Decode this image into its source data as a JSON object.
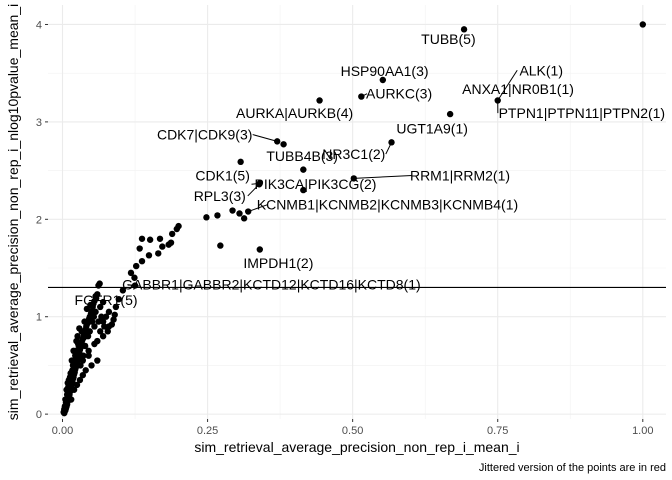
{
  "chart_data": {
    "type": "scatter",
    "xlabel": "sim_retrieval_average_precision_non_rep_i_mean_i",
    "ylabel": "sim_retrieval_average_precision_non_rep_i_nlog10pvalue_mean_i",
    "caption": "Jittered version of the points are in red",
    "xlim": [
      -0.025,
      1.04
    ],
    "ylim": [
      -0.05,
      4.2
    ],
    "x_ticks": [
      0.0,
      0.25,
      0.5,
      0.75,
      1.0
    ],
    "x_tick_labels": [
      "0.00",
      "0.25",
      "0.50",
      "0.75",
      "1.00"
    ],
    "y_ticks": [
      0,
      1,
      2,
      3,
      4
    ],
    "y_tick_labels": [
      "0",
      "1",
      "2",
      "3",
      "4"
    ],
    "grid": true,
    "hline": 1.301,
    "point_color": "#000000",
    "labeled_points": [
      {
        "label": "TUBB(5)",
        "x": 0.692,
        "y": 3.95,
        "lx": 0.665,
        "ly": 3.85
      },
      {
        "label": "ALK(1)",
        "x": 0.75,
        "y": 3.22,
        "lx": 0.825,
        "ly": 3.53
      },
      {
        "label": "HSP90AA1(3)",
        "x": 0.552,
        "y": 3.43,
        "lx": 0.555,
        "ly": 3.52
      },
      {
        "label": "ANXA1|NR0B1(1)",
        "x": 0.75,
        "y": 3.22,
        "lx": 0.785,
        "ly": 3.34
      },
      {
        "label": "AURKC(3)",
        "x": 0.515,
        "y": 3.26,
        "lx": 0.58,
        "ly": 3.29
      },
      {
        "label": "AURKA|AURKB(4)",
        "x": 0.443,
        "y": 3.22,
        "lx": 0.4,
        "ly": 3.09
      },
      {
        "label": "PTPN1|PTPN11|PTPN2(1)",
        "x": 0.75,
        "y": 3.22,
        "lx": 0.895,
        "ly": 3.09
      },
      {
        "label": "UGT1A9(1)",
        "x": 0.668,
        "y": 3.08,
        "lx": 0.637,
        "ly": 2.93
      },
      {
        "label": "CDK7|CDK9(3)",
        "x": 0.37,
        "y": 2.8,
        "lx": 0.245,
        "ly": 2.87
      },
      {
        "label": "NR3C1(2)",
        "x": 0.567,
        "y": 2.79,
        "lx": 0.502,
        "ly": 2.67
      },
      {
        "label": "TUBB4B(3)",
        "x": 0.381,
        "y": 2.77,
        "lx": 0.413,
        "ly": 2.65
      },
      {
        "label": "CDK1(5)",
        "x": 0.307,
        "y": 2.59,
        "lx": 0.276,
        "ly": 2.45
      },
      {
        "label": "RRM1|RRM2(1)",
        "x": 0.502,
        "y": 2.42,
        "lx": 0.685,
        "ly": 2.45
      },
      {
        "label": "PIK3CA|PIK3CG(2)",
        "x": 0.34,
        "y": 2.37,
        "lx": 0.436,
        "ly": 2.36
      },
      {
        "label": "RPL3(3)",
        "x": 0.339,
        "y": 2.36,
        "lx": 0.271,
        "ly": 2.24
      },
      {
        "label": "KCNMB1|KCNMB2|KCNMB3|KCNMB4(1)",
        "x": 0.32,
        "y": 2.08,
        "lx": 0.56,
        "ly": 2.15
      },
      {
        "label": "IMPDH1(2)",
        "x": 0.34,
        "y": 1.69,
        "lx": 0.372,
        "ly": 1.55
      },
      {
        "label": "GABBR1|GABBR2|KCTD12|KCTD16|KCTD8(1)",
        "x": 0.125,
        "y": 1.32,
        "lx": 0.36,
        "ly": 1.33
      },
      {
        "label": "FGFR1(5)",
        "x": 0.06,
        "y": 1.23,
        "lx": 0.075,
        "ly": 1.17
      }
    ],
    "points": [
      [
        1.0,
        4.0
      ],
      [
        0.692,
        3.95
      ],
      [
        0.552,
        3.43
      ],
      [
        0.515,
        3.26
      ],
      [
        0.443,
        3.22
      ],
      [
        0.75,
        3.22
      ],
      [
        0.668,
        3.08
      ],
      [
        0.567,
        2.79
      ],
      [
        0.37,
        2.8
      ],
      [
        0.381,
        2.77
      ],
      [
        0.307,
        2.59
      ],
      [
        0.415,
        2.51
      ],
      [
        0.502,
        2.42
      ],
      [
        0.34,
        2.37
      ],
      [
        0.339,
        2.36
      ],
      [
        0.415,
        2.3
      ],
      [
        0.248,
        2.02
      ],
      [
        0.267,
        2.04
      ],
      [
        0.293,
        2.09
      ],
      [
        0.305,
        2.06
      ],
      [
        0.32,
        2.08
      ],
      [
        0.313,
        2.01
      ],
      [
        0.272,
        1.73
      ],
      [
        0.34,
        1.69
      ],
      [
        0.2,
        1.93
      ],
      [
        0.197,
        1.9
      ],
      [
        0.189,
        1.85
      ],
      [
        0.172,
        1.72
      ],
      [
        0.187,
        1.76
      ],
      [
        0.183,
        1.74
      ],
      [
        0.137,
        1.8
      ],
      [
        0.151,
        1.79
      ],
      [
        0.168,
        1.8
      ],
      [
        0.133,
        1.7
      ],
      [
        0.149,
        1.63
      ],
      [
        0.165,
        1.65
      ],
      [
        0.137,
        1.57
      ],
      [
        0.127,
        1.52
      ],
      [
        0.118,
        1.45
      ],
      [
        0.124,
        1.4
      ],
      [
        0.125,
        1.32
      ],
      [
        0.104,
        1.27
      ],
      [
        0.097,
        1.18
      ],
      [
        0.092,
        1.1
      ],
      [
        0.09,
        1.02
      ],
      [
        0.088,
        0.97
      ],
      [
        0.08,
        0.9
      ],
      [
        0.07,
        0.8
      ],
      [
        0.064,
        1.34
      ],
      [
        0.062,
        1.32
      ],
      [
        0.06,
        1.23
      ],
      [
        0.057,
        1.21
      ],
      [
        0.055,
        1.16
      ],
      [
        0.052,
        1.1
      ],
      [
        0.05,
        1.05
      ],
      [
        0.047,
        1.0
      ],
      [
        0.044,
        0.95
      ],
      [
        0.041,
        0.9
      ],
      [
        0.038,
        0.84
      ],
      [
        0.036,
        0.78
      ],
      [
        0.033,
        0.73
      ],
      [
        0.031,
        0.68
      ],
      [
        0.029,
        0.63
      ],
      [
        0.027,
        0.58
      ],
      [
        0.025,
        0.53
      ],
      [
        0.023,
        0.48
      ],
      [
        0.021,
        0.43
      ],
      [
        0.019,
        0.38
      ],
      [
        0.017,
        0.33
      ],
      [
        0.015,
        0.28
      ],
      [
        0.013,
        0.23
      ],
      [
        0.011,
        0.18
      ],
      [
        0.009,
        0.13
      ],
      [
        0.007,
        0.08
      ],
      [
        0.005,
        0.04
      ],
      [
        0.003,
        0.01
      ],
      [
        0.004,
        0.03
      ],
      [
        0.006,
        0.06
      ],
      [
        0.008,
        0.1
      ],
      [
        0.01,
        0.15
      ],
      [
        0.012,
        0.2
      ],
      [
        0.014,
        0.26
      ],
      [
        0.016,
        0.31
      ],
      [
        0.018,
        0.36
      ],
      [
        0.02,
        0.41
      ],
      [
        0.022,
        0.46
      ],
      [
        0.024,
        0.5
      ],
      [
        0.026,
        0.56
      ],
      [
        0.028,
        0.61
      ],
      [
        0.03,
        0.66
      ],
      [
        0.032,
        0.71
      ],
      [
        0.034,
        0.76
      ],
      [
        0.037,
        0.81
      ],
      [
        0.04,
        0.87
      ],
      [
        0.043,
        0.93
      ],
      [
        0.046,
        0.98
      ],
      [
        0.049,
        1.03
      ],
      [
        0.053,
        1.13
      ],
      [
        0.058,
        1.19
      ],
      [
        0.035,
        0.55
      ],
      [
        0.045,
        0.6
      ],
      [
        0.055,
        0.72
      ],
      [
        0.065,
        0.85
      ],
      [
        0.06,
        0.75
      ],
      [
        0.07,
        0.95
      ],
      [
        0.075,
        1.0
      ],
      [
        0.08,
        1.05
      ],
      [
        0.085,
        0.92
      ],
      [
        0.05,
        0.5
      ],
      [
        0.04,
        0.45
      ],
      [
        0.06,
        0.55
      ],
      [
        0.03,
        0.35
      ],
      [
        0.02,
        0.25
      ],
      [
        0.015,
        0.15
      ],
      [
        0.025,
        0.3
      ],
      [
        0.035,
        0.4
      ],
      [
        0.045,
        0.65
      ],
      [
        0.055,
        0.9
      ],
      [
        0.065,
        1.1
      ],
      [
        0.07,
        1.15
      ],
      [
        0.012,
        0.3
      ],
      [
        0.018,
        0.5
      ],
      [
        0.022,
        0.6
      ],
      [
        0.028,
        0.7
      ],
      [
        0.033,
        0.85
      ],
      [
        0.038,
        0.95
      ],
      [
        0.042,
        1.08
      ],
      [
        0.048,
        1.12
      ],
      [
        0.009,
        0.22
      ],
      [
        0.011,
        0.35
      ],
      [
        0.014,
        0.42
      ],
      [
        0.016,
        0.55
      ],
      [
        0.019,
        0.65
      ],
      [
        0.024,
        0.75
      ],
      [
        0.026,
        0.8
      ],
      [
        0.029,
        0.88
      ],
      [
        0.006,
        0.12
      ],
      [
        0.008,
        0.2
      ],
      [
        0.01,
        0.28
      ],
      [
        0.013,
        0.38
      ],
      [
        0.017,
        0.45
      ],
      [
        0.021,
        0.55
      ],
      [
        0.023,
        0.65
      ],
      [
        0.027,
        0.72
      ],
      [
        0.031,
        0.5
      ],
      [
        0.036,
        0.6
      ],
      [
        0.039,
        0.7
      ],
      [
        0.044,
        0.8
      ],
      [
        0.047,
        0.85
      ],
      [
        0.051,
        0.95
      ],
      [
        0.054,
        1.0
      ],
      [
        0.057,
        1.05
      ],
      [
        0.062,
        0.95
      ],
      [
        0.067,
        1.0
      ],
      [
        0.072,
        0.9
      ],
      [
        0.078,
        0.85
      ],
      [
        0.004,
        0.08
      ],
      [
        0.005,
        0.15
      ],
      [
        0.007,
        0.25
      ],
      [
        0.009,
        0.32
      ],
      [
        0.003,
        0.05
      ],
      [
        0.002,
        0.02
      ]
    ]
  }
}
